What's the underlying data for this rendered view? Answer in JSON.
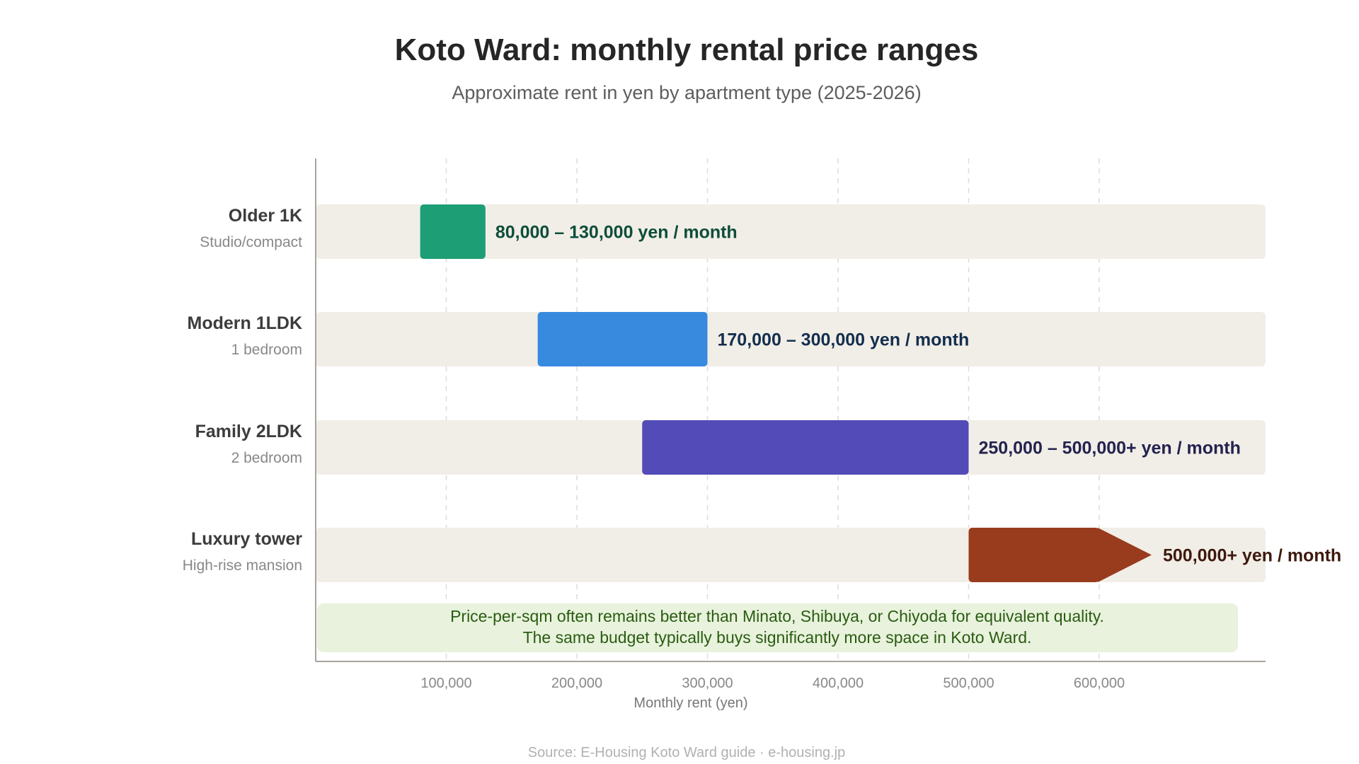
{
  "title": "Koto Ward: monthly rental price ranges",
  "subtitle": "Approximate rent in yen by apartment type (2025-2026)",
  "source": "Source: E-Housing Koto Ward guide · e-housing.jp",
  "chart_data": {
    "type": "bar",
    "orientation": "horizontal",
    "xlabel": "Monthly rent (yen)",
    "ylabel": "",
    "xlim": [
      0,
      730000
    ],
    "xticks": [
      100000,
      200000,
      300000,
      400000,
      500000,
      600000
    ],
    "xtick_labels": [
      "100,000",
      "200,000",
      "300,000",
      "400,000",
      "500,000",
      "600,000"
    ],
    "grid": "vertical dashed",
    "categories": [
      {
        "name": "Older 1K",
        "sub": "Studio/compact",
        "low": 80000,
        "high": 130000,
        "open_ended": false,
        "label": "80,000 – 130,000 yen / month",
        "color": "#1e9e75",
        "label_color": "#0d4d3a"
      },
      {
        "name": "Modern 1LDK",
        "sub": "1 bedroom",
        "low": 170000,
        "high": 300000,
        "open_ended": false,
        "label": "170,000 – 300,000 yen / month",
        "color": "#388ade",
        "label_color": "#132e4e"
      },
      {
        "name": "Family 2LDK",
        "sub": "2 bedroom",
        "low": 250000,
        "high": 500000,
        "open_ended": false,
        "label": "250,000 – 500,000+ yen / month",
        "color": "#534bb7",
        "label_color": "#24224f"
      },
      {
        "name": "Luxury tower",
        "sub": "High-rise mansion",
        "low": 500000,
        "high": 600000,
        "open_ended": true,
        "label": "500,000+ yen / month",
        "color": "#993b1d",
        "label_color": "#3e190d"
      }
    ],
    "annotation": {
      "lines": [
        "Price-per-sqm often remains better than Minato, Shibuya, or Chiyoda for equivalent quality.",
        "The same budget typically buys significantly more space in Koto Ward."
      ],
      "background": "#e8f2dc",
      "color": "#2a5c12"
    },
    "track_color": "#f1eee7",
    "axis_color": "#a8a49c"
  }
}
